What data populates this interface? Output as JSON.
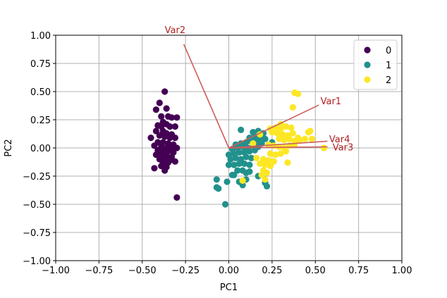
{
  "chart_data": {
    "type": "scatter",
    "title": "",
    "xlabel": "PC1",
    "ylabel": "PC2",
    "xlim": [
      -1.0,
      1.0
    ],
    "ylim": [
      -1.0,
      1.0
    ],
    "xticks": [
      "−1.00",
      "−0.75",
      "−0.50",
      "−0.25",
      "0.00",
      "0.25",
      "0.50",
      "0.75",
      "1.00"
    ],
    "yticks": [
      "1.00",
      "0.75",
      "0.50",
      "0.25",
      "0.00",
      "−0.25",
      "−0.50",
      "−0.75",
      "−1.00"
    ],
    "xtick_values": [
      -1.0,
      -0.75,
      -0.5,
      -0.25,
      0.0,
      0.25,
      0.5,
      0.75,
      1.0
    ],
    "ytick_values": [
      1.0,
      0.75,
      0.5,
      0.25,
      0.0,
      -0.25,
      -0.5,
      -0.75,
      -1.0
    ],
    "grid": true,
    "legend_position": "top-right",
    "legend_title": "",
    "series": [
      {
        "name": "0",
        "color": "#440154",
        "points": [
          [
            -0.37,
            0.5
          ],
          [
            -0.4,
            0.4
          ],
          [
            -0.42,
            0.34
          ],
          [
            -0.36,
            0.35
          ],
          [
            -0.39,
            0.28
          ],
          [
            -0.35,
            0.28
          ],
          [
            -0.33,
            0.27
          ],
          [
            -0.3,
            0.27
          ],
          [
            -0.38,
            0.23
          ],
          [
            -0.36,
            0.21
          ],
          [
            -0.41,
            0.2
          ],
          [
            -0.39,
            0.19
          ],
          [
            -0.34,
            0.19
          ],
          [
            -0.31,
            0.19
          ],
          [
            -0.42,
            0.15
          ],
          [
            -0.38,
            0.15
          ],
          [
            -0.36,
            0.13
          ],
          [
            -0.33,
            0.12
          ],
          [
            -0.4,
            0.11
          ],
          [
            -0.37,
            0.1
          ],
          [
            -0.34,
            0.09
          ],
          [
            -0.31,
            0.09
          ],
          [
            -0.45,
            0.09
          ],
          [
            -0.41,
            0.05
          ],
          [
            -0.38,
            0.05
          ],
          [
            -0.35,
            0.04
          ],
          [
            -0.32,
            0.03
          ],
          [
            -0.43,
            0.02
          ],
          [
            -0.39,
            0.01
          ],
          [
            -0.36,
            0.0
          ],
          [
            -0.33,
            0.0
          ],
          [
            -0.3,
            0.0
          ],
          [
            -0.41,
            -0.02
          ],
          [
            -0.38,
            -0.03
          ],
          [
            -0.35,
            -0.03
          ],
          [
            -0.32,
            -0.04
          ],
          [
            -0.42,
            -0.06
          ],
          [
            -0.39,
            -0.06
          ],
          [
            -0.36,
            -0.07
          ],
          [
            -0.33,
            -0.08
          ],
          [
            -0.4,
            -0.1
          ],
          [
            -0.37,
            -0.1
          ],
          [
            -0.34,
            -0.11
          ],
          [
            -0.31,
            -0.12
          ],
          [
            -0.38,
            -0.13
          ],
          [
            -0.35,
            -0.13
          ],
          [
            -0.39,
            -0.16
          ],
          [
            -0.36,
            -0.17
          ],
          [
            -0.43,
            -0.18
          ],
          [
            -0.37,
            -0.2
          ],
          [
            -0.3,
            -0.44
          ]
        ]
      },
      {
        "name": "1",
        "color": "#21918c",
        "points": [
          [
            -0.02,
            -0.5
          ],
          [
            -0.07,
            -0.28
          ],
          [
            -0.07,
            -0.35
          ],
          [
            -0.06,
            -0.36
          ],
          [
            -0.01,
            -0.3
          ],
          [
            0.02,
            -0.24
          ],
          [
            0.03,
            -0.24
          ],
          [
            0.05,
            -0.2
          ],
          [
            0.08,
            -0.2
          ],
          [
            0.1,
            -0.22
          ],
          [
            0.12,
            -0.21
          ],
          [
            0.0,
            -0.15
          ],
          [
            0.03,
            -0.15
          ],
          [
            0.06,
            -0.14
          ],
          [
            0.09,
            -0.14
          ],
          [
            0.12,
            -0.15
          ],
          [
            0.01,
            -0.1
          ],
          [
            0.04,
            -0.09
          ],
          [
            0.07,
            -0.1
          ],
          [
            0.1,
            -0.08
          ],
          [
            0.13,
            -0.09
          ],
          [
            0.0,
            -0.06
          ],
          [
            0.03,
            -0.05
          ],
          [
            0.06,
            -0.04
          ],
          [
            0.09,
            -0.04
          ],
          [
            0.12,
            -0.03
          ],
          [
            0.15,
            -0.02
          ],
          [
            0.02,
            -0.01
          ],
          [
            0.05,
            0.0
          ],
          [
            0.08,
            0.01
          ],
          [
            0.11,
            0.0
          ],
          [
            0.14,
            0.02
          ],
          [
            0.17,
            0.01
          ],
          [
            0.04,
            0.03
          ],
          [
            0.07,
            0.04
          ],
          [
            0.1,
            0.05
          ],
          [
            0.13,
            0.06
          ],
          [
            0.16,
            0.05
          ],
          [
            0.19,
            0.04
          ],
          [
            0.12,
            0.09
          ],
          [
            0.15,
            0.1
          ],
          [
            0.18,
            0.09
          ],
          [
            0.21,
            0.08
          ],
          [
            0.07,
            0.16
          ],
          [
            0.14,
            0.14
          ],
          [
            0.17,
            0.15
          ],
          [
            0.2,
            0.13
          ],
          [
            0.1,
            -0.28
          ],
          [
            0.17,
            -0.25
          ],
          [
            0.08,
            -0.33
          ],
          [
            0.21,
            -0.31
          ],
          [
            0.22,
            -0.34
          ],
          [
            0.06,
            -0.3
          ],
          [
            0.25,
            0.05
          ]
        ]
      },
      {
        "name": "2",
        "color": "#fde725",
        "points": [
          [
            0.38,
            0.49
          ],
          [
            0.4,
            0.48
          ],
          [
            0.37,
            0.36
          ],
          [
            0.24,
            0.17
          ],
          [
            0.27,
            0.18
          ],
          [
            0.3,
            0.17
          ],
          [
            0.33,
            0.19
          ],
          [
            0.36,
            0.18
          ],
          [
            0.25,
            0.14
          ],
          [
            0.28,
            0.13
          ],
          [
            0.31,
            0.12
          ],
          [
            0.34,
            0.11
          ],
          [
            0.37,
            0.13
          ],
          [
            0.29,
            0.08
          ],
          [
            0.32,
            0.07
          ],
          [
            0.35,
            0.08
          ],
          [
            0.38,
            0.06
          ],
          [
            0.41,
            0.07
          ],
          [
            0.44,
            0.08
          ],
          [
            0.47,
            0.15
          ],
          [
            0.46,
            0.14
          ],
          [
            0.48,
            0.08
          ],
          [
            0.23,
            0.03
          ],
          [
            0.26,
            0.02
          ],
          [
            0.29,
            0.01
          ],
          [
            0.32,
            0.0
          ],
          [
            0.35,
            0.02
          ],
          [
            0.38,
            0.03
          ],
          [
            0.24,
            -0.05
          ],
          [
            0.27,
            -0.06
          ],
          [
            0.3,
            -0.05
          ],
          [
            0.33,
            -0.03
          ],
          [
            0.2,
            -0.1
          ],
          [
            0.23,
            -0.11
          ],
          [
            0.26,
            -0.12
          ],
          [
            0.18,
            -0.14
          ],
          [
            0.21,
            -0.15
          ],
          [
            0.24,
            -0.16
          ],
          [
            0.2,
            -0.2
          ],
          [
            0.22,
            -0.22
          ],
          [
            0.19,
            -0.24
          ],
          [
            0.21,
            -0.28
          ],
          [
            0.34,
            -0.13
          ],
          [
            0.55,
            0.0
          ],
          [
            0.16,
            -0.09
          ],
          [
            0.08,
            -0.29
          ],
          [
            0.14,
            0.04
          ],
          [
            0.18,
            0.12
          ],
          [
            0.3,
            0.21
          ],
          [
            0.4,
            0.09
          ]
        ]
      }
    ],
    "vectors": [
      {
        "label": "Var1",
        "x": 0.52,
        "y": 0.38,
        "label_x": 0.53,
        "label_y": 0.42
      },
      {
        "label": "Var2",
        "x": -0.26,
        "y": 0.92,
        "label_x": -0.37,
        "label_y": 1.05
      },
      {
        "label": "Var3",
        "x": 0.57,
        "y": 0.01,
        "label_x": 0.6,
        "label_y": 0.01
      },
      {
        "label": "Var4",
        "x": 0.57,
        "y": 0.06,
        "label_x": 0.58,
        "label_y": 0.08
      }
    ],
    "vector_color": "#cd5c5c",
    "vector_label_color": "#b22222"
  }
}
